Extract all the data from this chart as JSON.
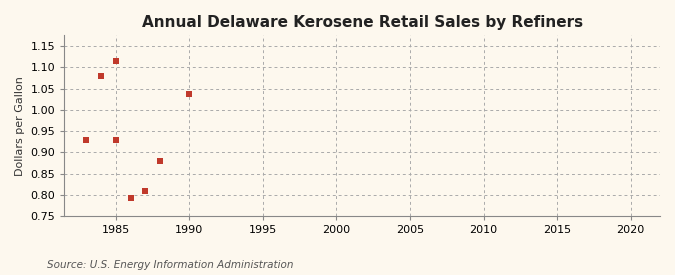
{
  "title": "Annual Delaware Kerosene Retail Sales by Refiners",
  "ylabel": "Dollars per Gallon",
  "source": "Source: U.S. Energy Information Administration",
  "x_data": [
    1983,
    1984,
    1985,
    1985,
    1986,
    1987,
    1988,
    1990
  ],
  "y_data": [
    0.93,
    1.08,
    1.115,
    0.93,
    0.793,
    0.81,
    0.879,
    1.038
  ],
  "xlim": [
    1981.5,
    2022
  ],
  "ylim": [
    0.75,
    1.175
  ],
  "xticks": [
    1985,
    1990,
    1995,
    2000,
    2005,
    2010,
    2015,
    2020
  ],
  "yticks": [
    0.75,
    0.8,
    0.85,
    0.9,
    0.95,
    1.0,
    1.05,
    1.1,
    1.15
  ],
  "marker_color": "#c0392b",
  "marker": "s",
  "marker_size": 16,
  "background_color": "#fdf8ee",
  "grid_color": "#aaaaaa",
  "title_fontsize": 11,
  "title_fontweight": "bold",
  "label_fontsize": 8,
  "tick_fontsize": 8,
  "source_fontsize": 7.5
}
